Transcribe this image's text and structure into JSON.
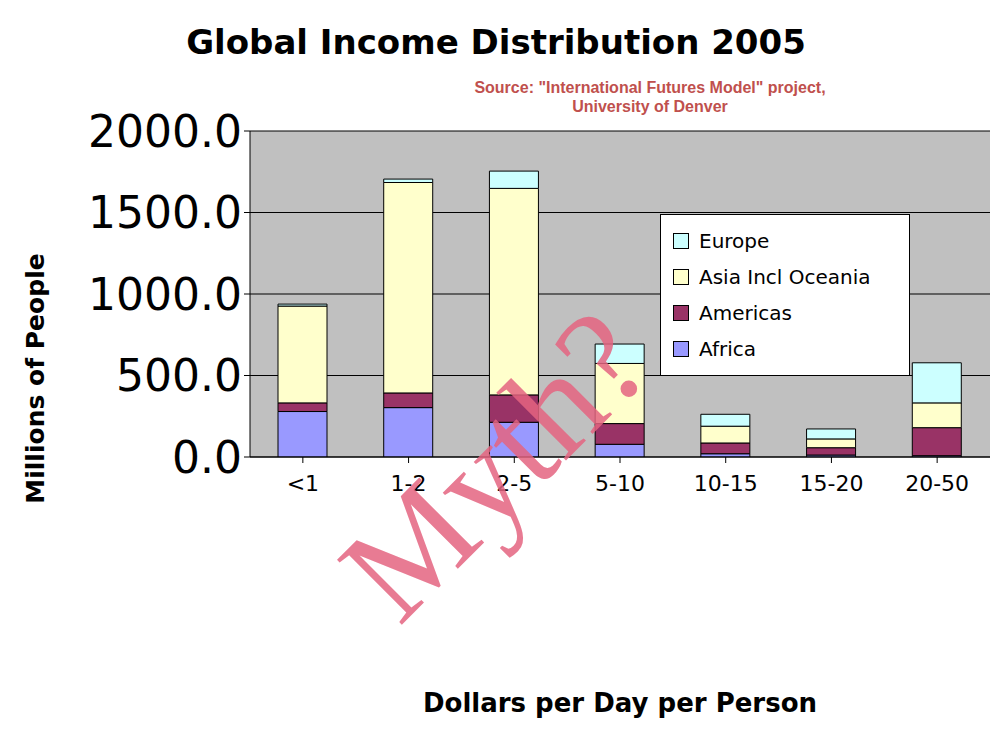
{
  "chart_data": {
    "type": "bar",
    "title": "Global Income Distribution 2005",
    "subtitle": [
      "Source: \"International Futures Model\" project,",
      "University of Denver"
    ],
    "annotation": "Myth?",
    "x_label": "Dollars per Day per Person",
    "y_label": "Millions of People",
    "categories": [
      "<1",
      "1-2",
      "2-5",
      "5-10",
      "10-15",
      "15-20",
      "20-50"
    ],
    "series": [
      {
        "name": "Europe",
        "color": "#ccffff",
        "values": [
          12,
          21,
          106,
          119,
          73,
          61,
          246
        ]
      },
      {
        "name": "Asia Incl Oceania",
        "color": "#ffffcc",
        "values": [
          594,
          1291,
          1267,
          369,
          103,
          54,
          152
        ]
      },
      {
        "name": "Americas",
        "color": "#993366",
        "values": [
          53,
          90,
          168,
          127,
          66,
          45,
          172
        ]
      },
      {
        "name": "Africa",
        "color": "#9999ff",
        "values": [
          279,
          303,
          213,
          78,
          20,
          12,
          8
        ]
      }
    ],
    "ylim": [
      0,
      2000
    ],
    "yticks": [
      {
        "value": 0,
        "label": "0.0"
      },
      {
        "value": 500,
        "label": "500.0"
      },
      {
        "value": 1000,
        "label": "1000.0"
      },
      {
        "value": 1500,
        "label": "1500.0"
      },
      {
        "value": 2000,
        "label": "2000.0"
      }
    ],
    "stacked": true,
    "grid": true,
    "legend": "top-right"
  }
}
